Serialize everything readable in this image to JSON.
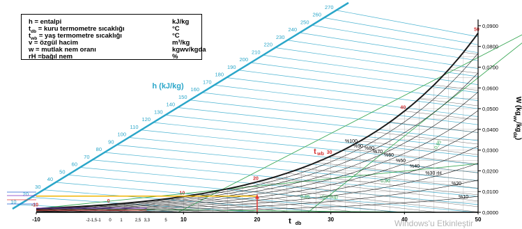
{
  "legend": {
    "rows": [
      {
        "sym": "h",
        "sub": "",
        "text": " = entalpi",
        "unit": "kJ/kg"
      },
      {
        "sym": "t",
        "sub": "db",
        "text": " = kuru termometre sıcaklığı",
        "unit": "°C"
      },
      {
        "sym": "t",
        "sub": "wb",
        "text": " = yaş termometre sıcaklığı",
        "unit": "°C"
      },
      {
        "sym": "v",
        "sub": "",
        "text": " = özgül hacim",
        "unit": "m³/kg"
      },
      {
        "sym": "w",
        "sub": "",
        "text": " = mutlak nem oranı",
        "unit": "kgwv/kgda"
      },
      {
        "sym": "rH",
        "sub": "",
        "text": " =bağıl nem",
        "unit": "%"
      }
    ]
  },
  "watermark": "Windows'u Etkinleştir",
  "chart_data": {
    "type": "line",
    "x_axis": {
      "label": "t",
      "label_sub": "db",
      "ticks": [
        -10,
        10,
        20,
        30,
        40,
        50
      ],
      "tick_labels": [
        "-10",
        "10",
        "20",
        "30",
        "40",
        "50"
      ],
      "minor_tick_labels": [
        "-2",
        "-1,5",
        "-1",
        "0",
        "1",
        "2,5",
        "3,3",
        "5"
      ],
      "range": [
        -10,
        50
      ]
    },
    "y_axis": {
      "label": "W (kg",
      "label_sub": "wv",
      "label_end": "/kg",
      "label_sub2": "da",
      "label_close": ")",
      "ticks": [
        0,
        0.01,
        0.02,
        0.03,
        0.04,
        0.05,
        0.06,
        0.07,
        0.08,
        0.09
      ],
      "tick_labels": [
        "0,0000",
        "0,0100",
        "0,0200",
        "0,0300",
        "0,0400",
        "0,0500",
        "0,0600",
        "0,0700",
        "0,0800",
        "0,0900"
      ],
      "range": [
        0,
        0.093
      ],
      "position": "right"
    },
    "enthalpy_scale": {
      "label": "h (kJ/kg)",
      "values": [
        10,
        20,
        30,
        40,
        50,
        60,
        70,
        80,
        90,
        100,
        110,
        120,
        130,
        140,
        150,
        160,
        170,
        180,
        190,
        200,
        210,
        220,
        230,
        240,
        250,
        260,
        270
      ]
    },
    "wet_bulb_label": "t",
    "wet_bulb_label_sub": "wb",
    "wet_bulb_values": [
      -10,
      0,
      10,
      20,
      30,
      40,
      50
    ],
    "rh_labels": [
      "%100",
      "%90",
      "%80",
      "%70",
      "%60",
      "%50",
      "%40",
      "%30 rH",
      "%20",
      "%10"
    ],
    "rh_series": [
      100,
      90,
      80,
      70,
      60,
      50,
      40,
      30,
      20,
      10
    ],
    "volume_labels": [
      "0,95",
      "0,90",
      "v(m³/kg)",
      "0,85"
    ],
    "colors": {
      "enthalpy": "#2aa6c9",
      "saturation": "#1a1a1a",
      "rh": "#1a1a1a",
      "grid": "#b9b9b9",
      "wet_bulb_label": "#d32f2f",
      "volume": "#3aa856",
      "process_arrow": "#e53935",
      "process_line": "#f0b400"
    }
  }
}
